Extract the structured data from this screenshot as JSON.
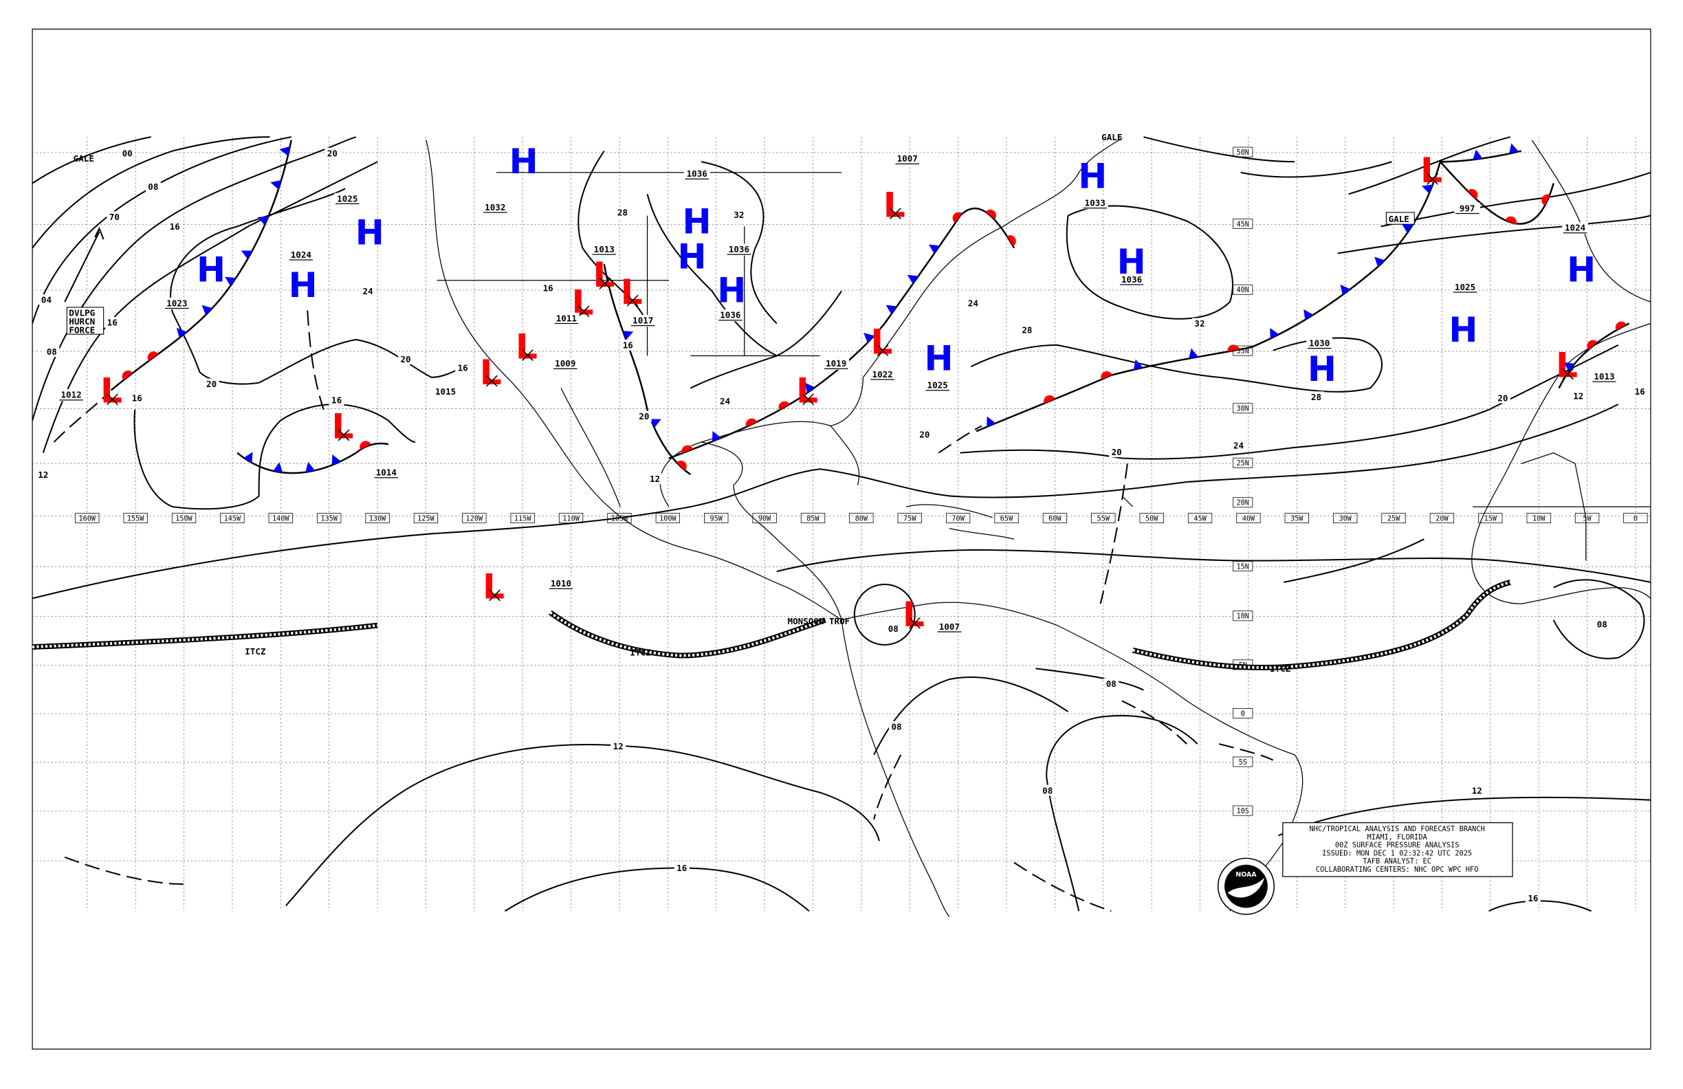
{
  "colors": {
    "high": "#0000ff",
    "low": "#ff0000",
    "cold_front": "#0000ff",
    "warm_front": "#ff0000",
    "isobar": "#000000"
  },
  "info_box": [
    "NHC/TROPICAL ANALYSIS AND FORECAST BRANCH",
    "MIAMI, FLORIDA",
    "00Z SURFACE PRESSURE ANALYSIS",
    "ISSUED: MON DEC 1 02:32:42 UTC 2025",
    "TAFB ANALYST: EC",
    "COLLABORATING CENTERS: NHC OPC WPC HFO"
  ],
  "logo_text": "NOAA",
  "longitude_labels": [
    "160W",
    "155W",
    "150W",
    "145W",
    "140W",
    "135W",
    "130W",
    "125W",
    "120W",
    "115W",
    "110W",
    "105W",
    "100W",
    "95W",
    "90W",
    "85W",
    "80W",
    "75W",
    "70W",
    "65W",
    "60W",
    "55W",
    "50W",
    "45W",
    "40W",
    "35W",
    "30W",
    "25W",
    "20W",
    "15W",
    "10W",
    "5W",
    "0"
  ],
  "latitude_labels": [
    "50N",
    "45N",
    "40N",
    "35N",
    "30N",
    "25N",
    "20N",
    "15N",
    "10N",
    "5N",
    "0",
    "5S",
    "10S"
  ],
  "pressure_centers": [
    {
      "type": "H",
      "lon": -147.2,
      "lat": 41.6,
      "label": "1023"
    },
    {
      "type": "H",
      "lon": -137.7,
      "lat": 40.4,
      "label": "1024"
    },
    {
      "type": "H",
      "lon": -130.8,
      "lat": 44.4,
      "label": "1025"
    },
    {
      "type": "H",
      "lon": -114.9,
      "lat": 49.4,
      "label": "1032"
    },
    {
      "type": "H",
      "lon": -97.0,
      "lat": 45.2,
      "label": "1036"
    },
    {
      "type": "H",
      "lon": -97.5,
      "lat": 42.6,
      "label": "1036"
    },
    {
      "type": "H",
      "lon": -93.4,
      "lat": 40.0,
      "label": "1036"
    },
    {
      "type": "H",
      "lon": -56.1,
      "lat": 48.4,
      "label": "1033"
    },
    {
      "type": "H",
      "lon": -52.1,
      "lat": 42.2,
      "label": "1036"
    },
    {
      "type": "H",
      "lon": -72.0,
      "lat": 34.4,
      "label": "1025"
    },
    {
      "type": "H",
      "lon": -32.4,
      "lat": 33.5,
      "label": "1030"
    },
    {
      "type": "H",
      "lon": -17.8,
      "lat": 36.8,
      "label": "1025"
    },
    {
      "type": "H",
      "lon": -5.6,
      "lat": 41.6,
      "label": "1024"
    },
    {
      "type": "L",
      "lon": -157.5,
      "lat": 31.6,
      "label": "1012"
    },
    {
      "type": "L",
      "lon": -133.6,
      "lat": 28.4,
      "label": "1014"
    },
    {
      "type": "L",
      "lon": -114.6,
      "lat": 35.4,
      "label": "1009"
    },
    {
      "type": "L",
      "lon": -118.3,
      "lat": 33.2,
      "label": ""
    },
    {
      "type": "L",
      "lon": -108.8,
      "lat": 39.0,
      "label": "1011"
    },
    {
      "type": "L",
      "lon": -106.6,
      "lat": 41.2,
      "label": "1013"
    },
    {
      "type": "L",
      "lon": -106.2,
      "lat": 40.2,
      "label": "1017"
    },
    {
      "type": "L",
      "lon": -76.6,
      "lat": 46.4,
      "label": "1007"
    },
    {
      "type": "L",
      "lon": -77.9,
      "lat": 35.8,
      "label": "1022"
    },
    {
      "type": "L",
      "lon": -85.6,
      "lat": 31.6,
      "label": "1019"
    },
    {
      "type": "L",
      "lon": -21.1,
      "lat": 48.8,
      "label": "997"
    },
    {
      "type": "L",
      "lon": -7.1,
      "lat": 33.8,
      "label": "1013"
    },
    {
      "type": "L",
      "lon": -118.0,
      "lat": 13.0,
      "label": "1010"
    },
    {
      "type": "L",
      "lon": -74.6,
      "lat": 10.2,
      "label": "1007"
    }
  ],
  "isobar_labels": [
    "00",
    "08",
    "70",
    "16",
    "04",
    "16",
    "08",
    "20",
    "20",
    "24",
    "20",
    "16",
    "16",
    "16",
    "12",
    "20",
    "20",
    "24",
    "28",
    "28",
    "32",
    "24",
    "32",
    "28",
    "16",
    "16",
    "20",
    "12",
    "24",
    "12",
    "16",
    "08",
    "08",
    "08",
    "08",
    "12",
    "16",
    "20",
    "12",
    "16",
    "08",
    "1015"
  ],
  "annotations": {
    "gale_1": "GALE",
    "gale_2": "GALE",
    "gale_3": "GALE",
    "dvlpg": [
      "DVLPG",
      "HURCN",
      "FORCE"
    ],
    "itcz": [
      "ITCZ",
      "ITCZ",
      "ITCZ"
    ],
    "monsoon": "MONSOON TROF"
  }
}
